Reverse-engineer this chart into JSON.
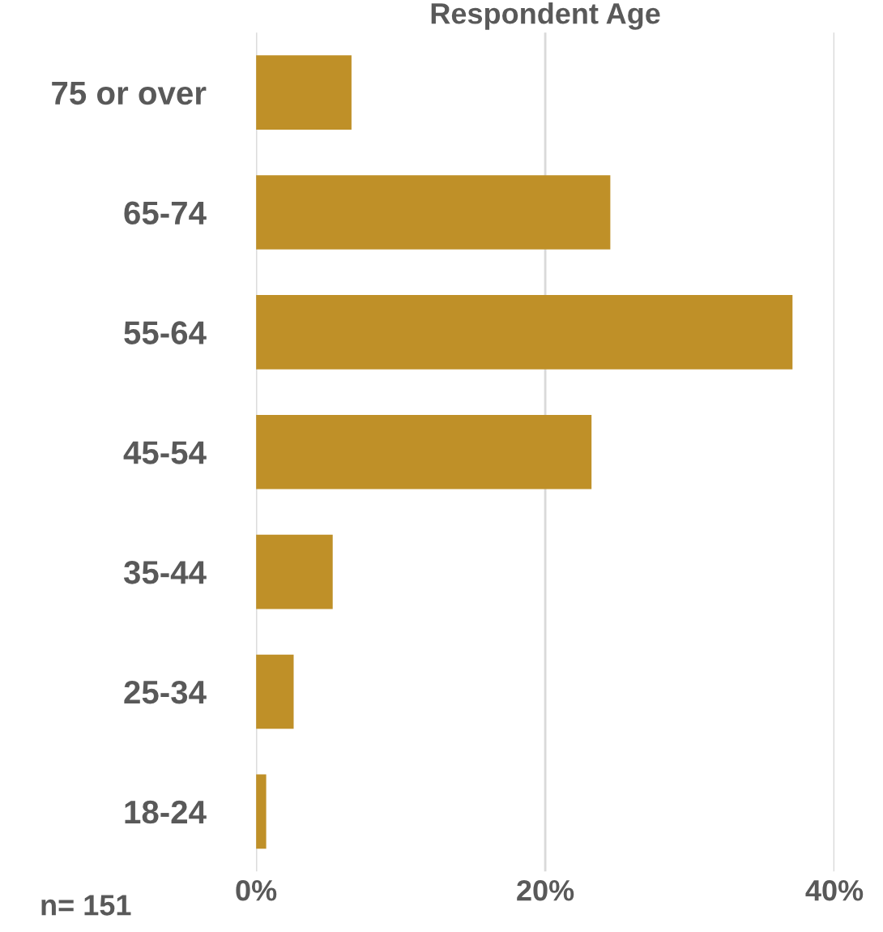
{
  "chart_data": {
    "type": "bar",
    "orientation": "horizontal",
    "title": "Respondent Age",
    "categories": [
      "75 or over",
      "65-74",
      "55-64",
      "45-54",
      "35-44",
      "25-34",
      "18-24"
    ],
    "values": [
      6.6,
      24.5,
      37.1,
      23.2,
      5.3,
      2.6,
      0.7
    ],
    "color": "#bf9028",
    "xlim": [
      0,
      40
    ],
    "xticks": [
      {
        "value": 0,
        "label": "0%"
      },
      {
        "value": 20,
        "label": "20%"
      },
      {
        "value": 40,
        "label": "40%"
      }
    ],
    "grid": "x",
    "annotations": [
      "n= 151"
    ]
  }
}
